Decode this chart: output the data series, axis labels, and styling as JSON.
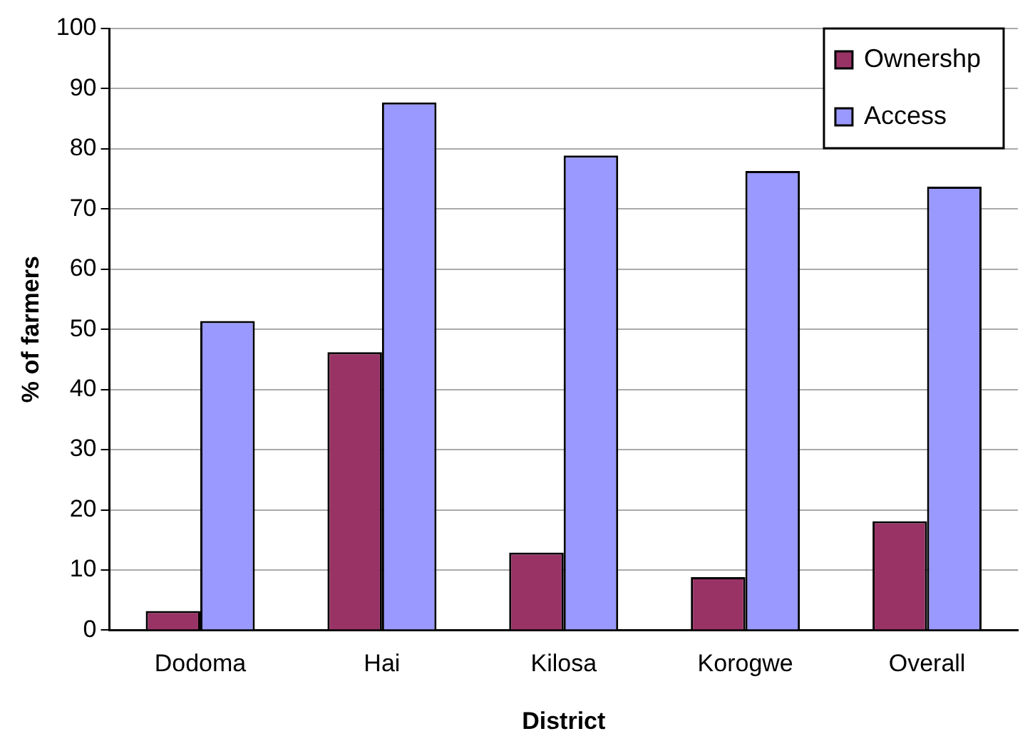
{
  "chart_data": {
    "type": "bar",
    "xlabel": "District",
    "ylabel": "% of farmers",
    "categories": [
      "Dodoma",
      "Hai",
      "Kilosa",
      "Korogwe",
      "Overall"
    ],
    "series": [
      {
        "name": "Ownershp",
        "color": "#993366",
        "values": [
          3.2,
          46.2,
          12.9,
          8.8,
          18.1
        ]
      },
      {
        "name": "Access",
        "color": "#9999ff",
        "values": [
          51.4,
          87.7,
          78.9,
          76.3,
          73.7
        ]
      }
    ],
    "ylim": [
      0,
      100
    ],
    "yticks": [
      0,
      10,
      20,
      30,
      40,
      50,
      60,
      70,
      80,
      90,
      100
    ],
    "grid": "y",
    "legend": "top right"
  }
}
